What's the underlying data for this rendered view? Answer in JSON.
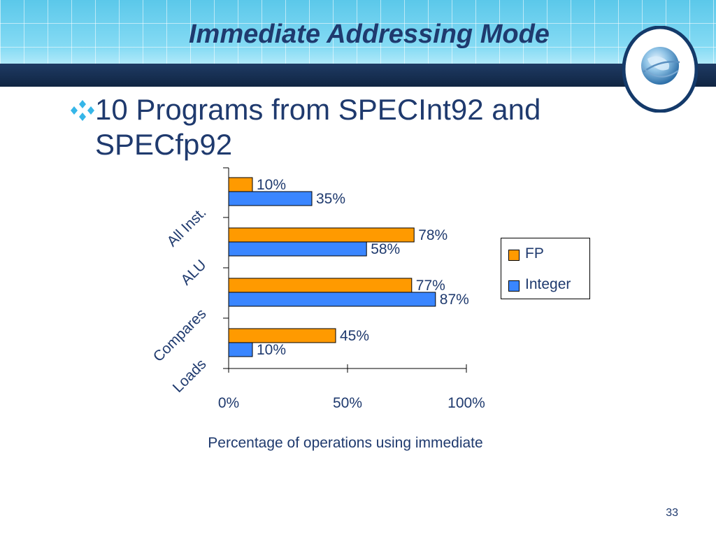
{
  "slide": {
    "title": "Immediate Addressing Mode",
    "bullet": "10 Programs from SPECInt92 and SPECfp92",
    "page_number": "33"
  },
  "colors": {
    "title": "#1f3a6e",
    "text": "#1f3a6e",
    "fp": "#ff9a00",
    "integer": "#3a86ff",
    "header_dark": "#102542",
    "bullet_icon": "#36b6e8"
  },
  "icons": {
    "bullet": "four-diamond-bullet-icon",
    "badge": "globe-icon"
  },
  "chart_data": {
    "type": "bar",
    "orientation": "horizontal",
    "categories": [
      "All Inst.",
      "ALU",
      "Compares",
      "Loads"
    ],
    "series": [
      {
        "name": "FP",
        "values": [
          10,
          78,
          77,
          45
        ],
        "labels": [
          "10%",
          "78%",
          "77%",
          "45%"
        ]
      },
      {
        "name": "Integer",
        "values": [
          35,
          58,
          87,
          10
        ],
        "labels": [
          "35%",
          "58%",
          "87%",
          "10%"
        ]
      }
    ],
    "xlabel": "Percentage of operations using immediate",
    "xlim": [
      0,
      100
    ],
    "x_ticks": [
      0,
      50,
      100
    ],
    "x_tick_labels": [
      "0%",
      "50%",
      "100%"
    ],
    "legend_position": "right",
    "grid": false
  }
}
